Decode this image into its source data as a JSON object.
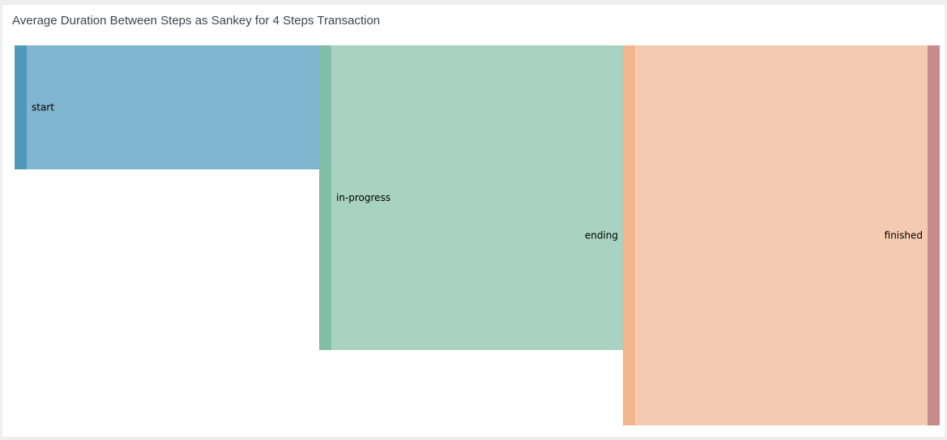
{
  "panel": {
    "title": "Average Duration Between Steps as Sankey for 4 Steps Transaction"
  },
  "chart_data": {
    "type": "sankey",
    "title": "Average Duration Between Steps as Sankey for 4 Steps Transaction",
    "nodes": [
      {
        "id": "start",
        "label": "start",
        "color": "#4f97bb"
      },
      {
        "id": "in-progress",
        "label": "in-progress",
        "color": "#81bea7"
      },
      {
        "id": "ending",
        "label": "ending",
        "color": "#f1b68d"
      },
      {
        "id": "finished",
        "label": "finished",
        "color": "#c98a8c"
      }
    ],
    "links": [
      {
        "source": "start",
        "target": "in-progress",
        "value": 153,
        "color": "#7fb5cf"
      },
      {
        "source": "in-progress",
        "target": "ending",
        "value": 376,
        "color": "#a8d2c1"
      },
      {
        "source": "ending",
        "target": "finished",
        "value": 469,
        "color": "#f4cbb0"
      }
    ]
  }
}
